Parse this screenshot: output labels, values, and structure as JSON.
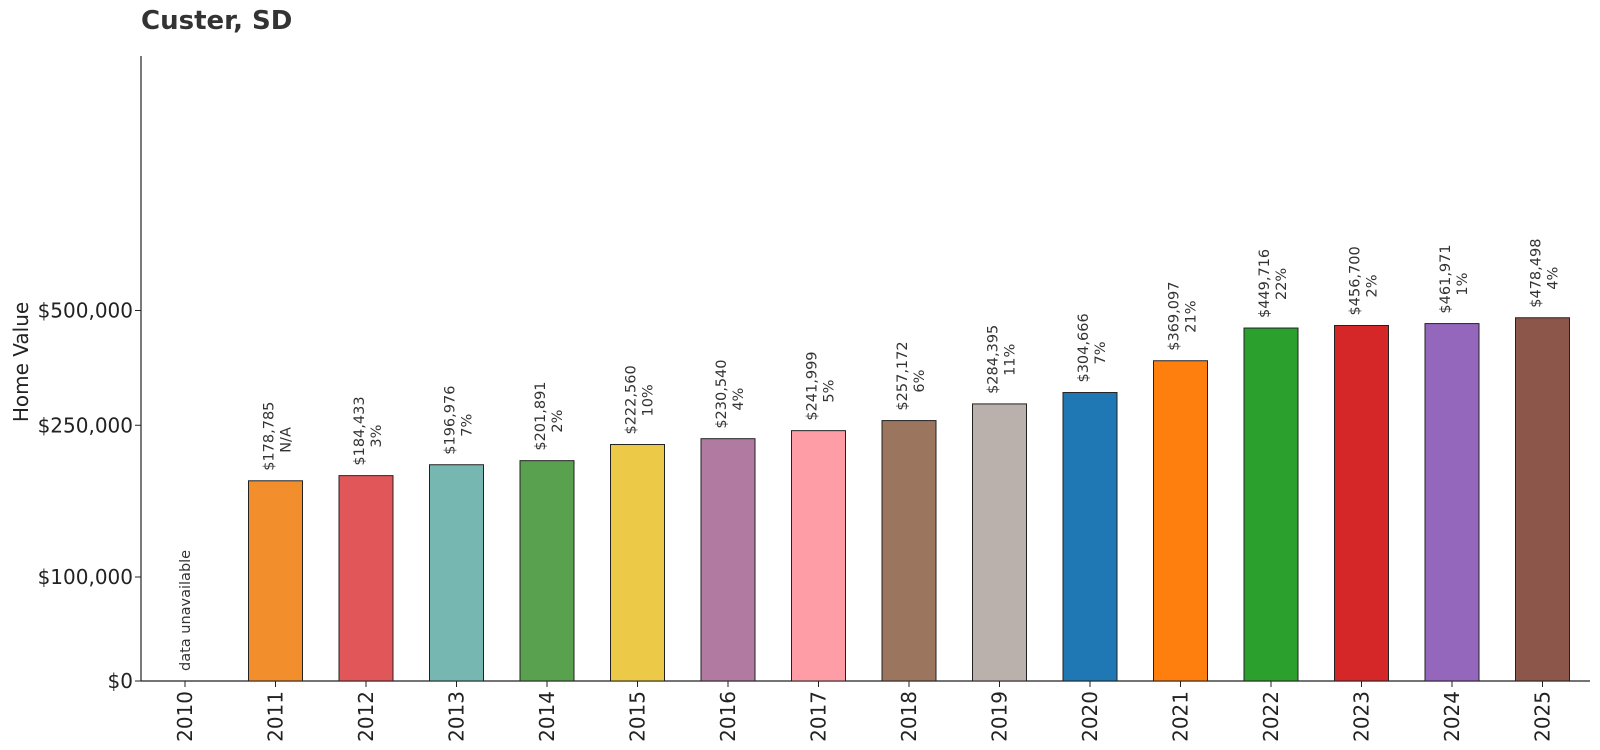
{
  "chart_data": {
    "type": "bar",
    "title": "Custer, SD",
    "xlabel": "",
    "ylabel": "Home Value",
    "yscale": "symlog",
    "ylim": [
      0,
      700000
    ],
    "yticks": [
      {
        "value": 0,
        "label": "$0"
      },
      {
        "value": 100000,
        "label": "$100,000"
      },
      {
        "value": 250000,
        "label": "$250,000"
      },
      {
        "value": 500000,
        "label": "$500,000"
      }
    ],
    "grid": false,
    "legend": "none",
    "categories": [
      "2010",
      "2011",
      "2012",
      "2013",
      "2014",
      "2015",
      "2016",
      "2017",
      "2018",
      "2019",
      "2020",
      "2021",
      "2022",
      "2023",
      "2024",
      "2025"
    ],
    "values": [
      null,
      178785,
      184433,
      196976,
      201891,
      222560,
      230540,
      241999,
      257172,
      284395,
      304666,
      369097,
      449716,
      456700,
      461971,
      478498
    ],
    "value_labels": [
      "data unavailable",
      "$178,785",
      "$184,433",
      "$196,976",
      "$201,891",
      "$222,560",
      "$230,540",
      "$241,999",
      "$257,172",
      "$284,395",
      "$304,666",
      "$369,097",
      "$449,716",
      "$456,700",
      "$461,971",
      "$478,498"
    ],
    "change_labels": [
      "",
      "N/A",
      "3%",
      "7%",
      "2%",
      "10%",
      "4%",
      "5%",
      "6%",
      "11%",
      "7%",
      "21%",
      "22%",
      "2%",
      "1%",
      "4%"
    ],
    "colors": [
      "#cccccc",
      "#f28e2b",
      "#e15759",
      "#76b7b2",
      "#59a14f",
      "#edc948",
      "#b07aa1",
      "#ff9da7",
      "#9c755f",
      "#bab0ac",
      "#1f77b4",
      "#ff7f0e",
      "#2ca02c",
      "#d62728",
      "#9467bd",
      "#8c564b"
    ]
  }
}
